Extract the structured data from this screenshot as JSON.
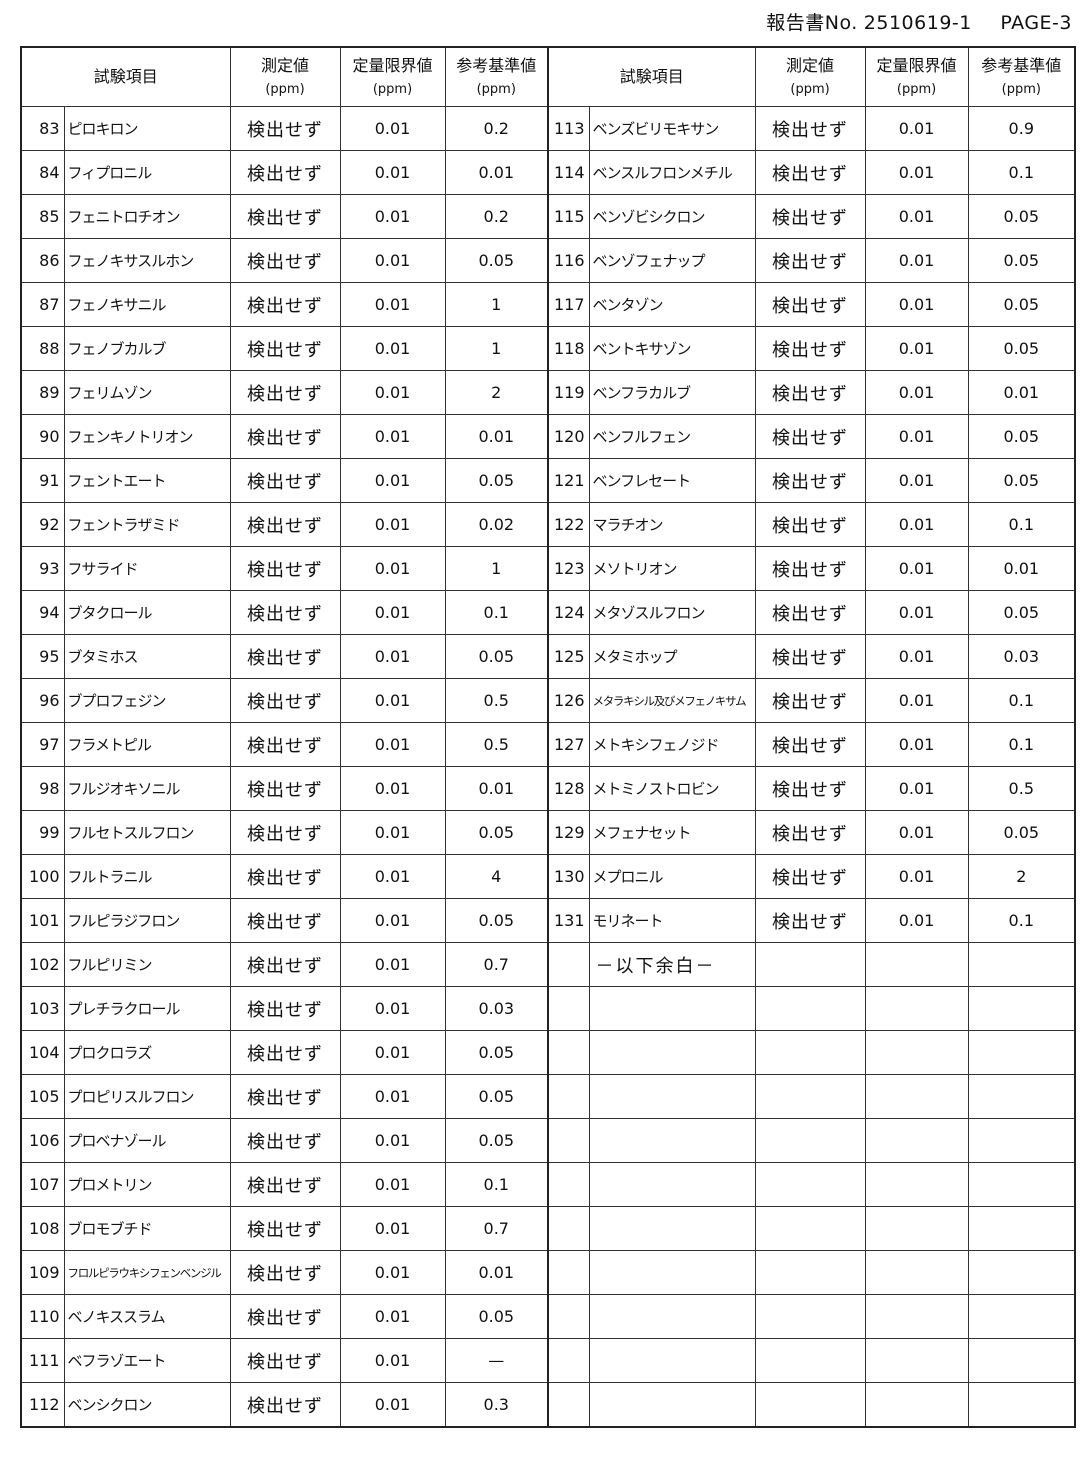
{
  "header": {
    "report_no_label": "報告書No.",
    "report_no": "2510619-1",
    "page": "PAGE-3"
  },
  "columns": {
    "item": "試験項目",
    "measured": "測定値",
    "loq": "定量限界値",
    "reference": "参考基準値",
    "unit": "(ppm)"
  },
  "left_rows": [
    {
      "no": "83",
      "name": "ピロキロン",
      "measured": "検出せず",
      "loq": "0.01",
      "ref": "0.2"
    },
    {
      "no": "84",
      "name": "フィプロニル",
      "measured": "検出せず",
      "loq": "0.01",
      "ref": "0.01"
    },
    {
      "no": "85",
      "name": "フェニトロチオン",
      "measured": "検出せず",
      "loq": "0.01",
      "ref": "0.2"
    },
    {
      "no": "86",
      "name": "フェノキサスルホン",
      "measured": "検出せず",
      "loq": "0.01",
      "ref": "0.05"
    },
    {
      "no": "87",
      "name": "フェノキサニル",
      "measured": "検出せず",
      "loq": "0.01",
      "ref": "1"
    },
    {
      "no": "88",
      "name": "フェノブカルブ",
      "measured": "検出せず",
      "loq": "0.01",
      "ref": "1"
    },
    {
      "no": "89",
      "name": "フェリムゾン",
      "measured": "検出せず",
      "loq": "0.01",
      "ref": "2"
    },
    {
      "no": "90",
      "name": "フェンキノトリオン",
      "measured": "検出せず",
      "loq": "0.01",
      "ref": "0.01"
    },
    {
      "no": "91",
      "name": "フェントエート",
      "measured": "検出せず",
      "loq": "0.01",
      "ref": "0.05"
    },
    {
      "no": "92",
      "name": "フェントラザミド",
      "measured": "検出せず",
      "loq": "0.01",
      "ref": "0.02"
    },
    {
      "no": "93",
      "name": "フサライド",
      "measured": "検出せず",
      "loq": "0.01",
      "ref": "1"
    },
    {
      "no": "94",
      "name": "ブタクロール",
      "measured": "検出せず",
      "loq": "0.01",
      "ref": "0.1"
    },
    {
      "no": "95",
      "name": "ブタミホス",
      "measured": "検出せず",
      "loq": "0.01",
      "ref": "0.05"
    },
    {
      "no": "96",
      "name": "ブプロフェジン",
      "measured": "検出せず",
      "loq": "0.01",
      "ref": "0.5"
    },
    {
      "no": "97",
      "name": "フラメトピル",
      "measured": "検出せず",
      "loq": "0.01",
      "ref": "0.5"
    },
    {
      "no": "98",
      "name": "フルジオキソニル",
      "measured": "検出せず",
      "loq": "0.01",
      "ref": "0.01"
    },
    {
      "no": "99",
      "name": "フルセトスルフロン",
      "measured": "検出せず",
      "loq": "0.01",
      "ref": "0.05"
    },
    {
      "no": "100",
      "name": "フルトラニル",
      "measured": "検出せず",
      "loq": "0.01",
      "ref": "4"
    },
    {
      "no": "101",
      "name": "フルピラジフロン",
      "measured": "検出せず",
      "loq": "0.01",
      "ref": "0.05"
    },
    {
      "no": "102",
      "name": "フルピリミン",
      "measured": "検出せず",
      "loq": "0.01",
      "ref": "0.7"
    },
    {
      "no": "103",
      "name": "プレチラクロール",
      "measured": "検出せず",
      "loq": "0.01",
      "ref": "0.03"
    },
    {
      "no": "104",
      "name": "プロクロラズ",
      "measured": "検出せず",
      "loq": "0.01",
      "ref": "0.05"
    },
    {
      "no": "105",
      "name": "プロピリスルフロン",
      "measured": "検出せず",
      "loq": "0.01",
      "ref": "0.05"
    },
    {
      "no": "106",
      "name": "プロベナゾール",
      "measured": "検出せず",
      "loq": "0.01",
      "ref": "0.05"
    },
    {
      "no": "107",
      "name": "プロメトリン",
      "measured": "検出せず",
      "loq": "0.01",
      "ref": "0.1"
    },
    {
      "no": "108",
      "name": "ブロモブチド",
      "measured": "検出せず",
      "loq": "0.01",
      "ref": "0.7"
    },
    {
      "no": "109",
      "name": "フロルピラウキシフェンベンジル",
      "measured": "検出せず",
      "loq": "0.01",
      "ref": "0.01"
    },
    {
      "no": "110",
      "name": "ベノキススラム",
      "measured": "検出せず",
      "loq": "0.01",
      "ref": "0.05"
    },
    {
      "no": "111",
      "name": "ベフラゾエート",
      "measured": "検出せず",
      "loq": "0.01",
      "ref": "—"
    },
    {
      "no": "112",
      "name": "ベンシクロン",
      "measured": "検出せず",
      "loq": "0.01",
      "ref": "0.3"
    }
  ],
  "right_rows": [
    {
      "no": "113",
      "name": "ベンズビリモキサン",
      "measured": "検出せず",
      "loq": "0.01",
      "ref": "0.9"
    },
    {
      "no": "114",
      "name": "ベンスルフロンメチル",
      "measured": "検出せず",
      "loq": "0.01",
      "ref": "0.1"
    },
    {
      "no": "115",
      "name": "ベンゾビシクロン",
      "measured": "検出せず",
      "loq": "0.01",
      "ref": "0.05"
    },
    {
      "no": "116",
      "name": "ベンゾフェナップ",
      "measured": "検出せず",
      "loq": "0.01",
      "ref": "0.05"
    },
    {
      "no": "117",
      "name": "ベンタゾン",
      "measured": "検出せず",
      "loq": "0.01",
      "ref": "0.05"
    },
    {
      "no": "118",
      "name": "ベントキサゾン",
      "measured": "検出せず",
      "loq": "0.01",
      "ref": "0.05"
    },
    {
      "no": "119",
      "name": "ベンフラカルブ",
      "measured": "検出せず",
      "loq": "0.01",
      "ref": "0.01"
    },
    {
      "no": "120",
      "name": "ベンフルフェン",
      "measured": "検出せず",
      "loq": "0.01",
      "ref": "0.05"
    },
    {
      "no": "121",
      "name": "ベンフレセート",
      "measured": "検出せず",
      "loq": "0.01",
      "ref": "0.05"
    },
    {
      "no": "122",
      "name": "マラチオン",
      "measured": "検出せず",
      "loq": "0.01",
      "ref": "0.1"
    },
    {
      "no": "123",
      "name": "メソトリオン",
      "measured": "検出せず",
      "loq": "0.01",
      "ref": "0.01"
    },
    {
      "no": "124",
      "name": "メタゾスルフロン",
      "measured": "検出せず",
      "loq": "0.01",
      "ref": "0.05"
    },
    {
      "no": "125",
      "name": "メタミホップ",
      "measured": "検出せず",
      "loq": "0.01",
      "ref": "0.03"
    },
    {
      "no": "126",
      "name": "メタラキシル及びメフェノキサム",
      "measured": "検出せず",
      "loq": "0.01",
      "ref": "0.1"
    },
    {
      "no": "127",
      "name": "メトキシフェノジド",
      "measured": "検出せず",
      "loq": "0.01",
      "ref": "0.1"
    },
    {
      "no": "128",
      "name": "メトミノストロビン",
      "measured": "検出せず",
      "loq": "0.01",
      "ref": "0.5"
    },
    {
      "no": "129",
      "name": "メフェナセット",
      "measured": "検出せず",
      "loq": "0.01",
      "ref": "0.05"
    },
    {
      "no": "130",
      "name": "メプロニル",
      "measured": "検出せず",
      "loq": "0.01",
      "ref": "2"
    },
    {
      "no": "131",
      "name": "モリネート",
      "measured": "検出せず",
      "loq": "0.01",
      "ref": "0.1"
    }
  ],
  "end_note": "－以下余白－"
}
